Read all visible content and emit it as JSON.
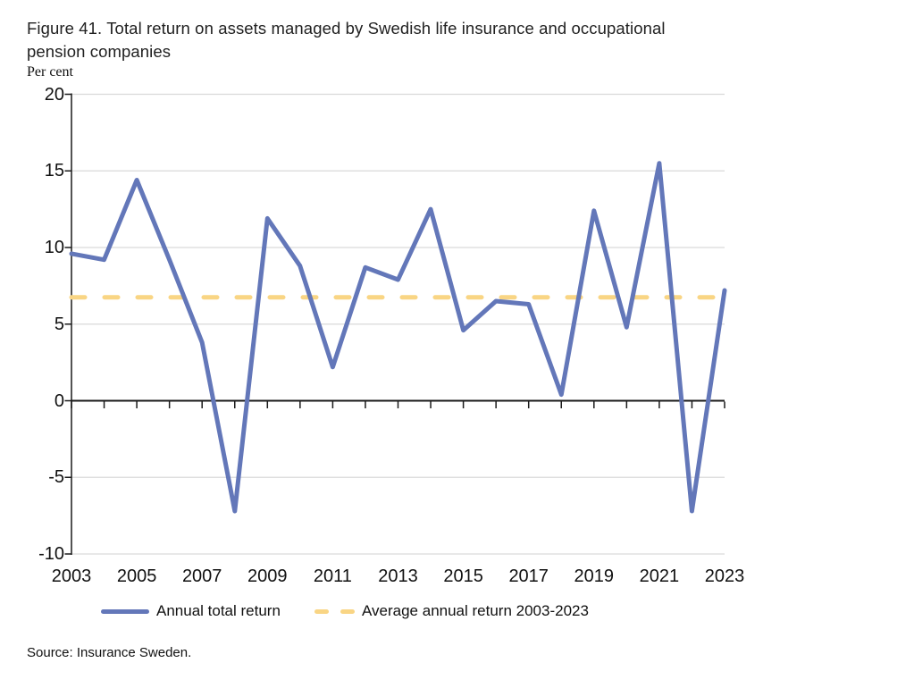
{
  "header": {
    "title_line_1": "Figure 41. Total return on assets managed by Swedish life insurance and occupational",
    "title_line_2": "pension companies",
    "axis_unit_label": "Per cent"
  },
  "legend": {
    "annual_label": "Annual total return",
    "average_label": "Average annual return 2003-2023"
  },
  "footer": {
    "source": "Source: Insurance Sweden."
  },
  "colors": {
    "annual_return_line": "#6377B9",
    "average_return_line": "#F9D584",
    "gridline": "#D9D9D9",
    "axis": "#1A1A1A",
    "text": "#111111"
  },
  "chart_data": {
    "type": "line",
    "title": "Figure 41. Total return on assets managed by Swedish life insurance and occupational pension companies",
    "ylabel": "Per cent",
    "xlabel": "",
    "ylim": [
      -10,
      20
    ],
    "grid": "horizontal",
    "legend_position": "bottom",
    "x": [
      2003,
      2004,
      2005,
      2006,
      2007,
      2008,
      2009,
      2010,
      2011,
      2012,
      2013,
      2014,
      2015,
      2016,
      2017,
      2018,
      2019,
      2020,
      2021,
      2022,
      2023
    ],
    "series": [
      {
        "name": "Annual total return",
        "style": "solid",
        "values": [
          9.6,
          9.2,
          14.4,
          9.2,
          3.8,
          -7.2,
          11.9,
          8.8,
          2.2,
          8.7,
          7.9,
          12.5,
          4.6,
          6.5,
          6.3,
          0.4,
          12.4,
          4.8,
          15.5,
          -7.2,
          7.2
        ]
      },
      {
        "name": "Average annual return 2003-2023",
        "style": "dashed",
        "constant_value": 6.75
      }
    ],
    "ytick_values": [
      20,
      15,
      10,
      5,
      0,
      -5,
      -10
    ],
    "ytick_labels": [
      "20",
      "15",
      "10",
      "5",
      "0",
      "-5",
      "-10"
    ],
    "xtick_labels": [
      "2003",
      "2005",
      "2007",
      "2009",
      "2011",
      "2013",
      "2015",
      "2017",
      "2019",
      "2021",
      "2023"
    ]
  }
}
